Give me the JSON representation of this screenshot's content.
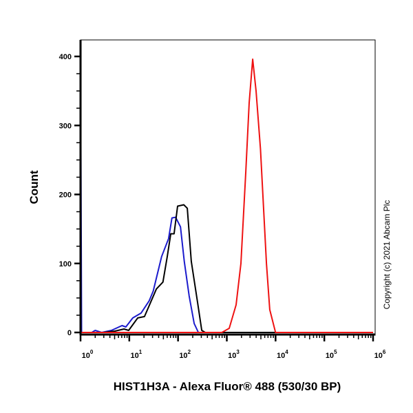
{
  "chart_data": {
    "type": "line",
    "title": "",
    "xlabel": "HIST1H3A - Alexa Fluor® 488 (530/30 BP)",
    "ylabel": "Count",
    "xscale": "log",
    "xlim": [
      1,
      1000000
    ],
    "ylim": [
      0,
      424
    ],
    "x_ticks": [
      1,
      10,
      100,
      1000,
      10000,
      100000,
      1000000
    ],
    "x_tick_labels": [
      {
        "base": "10",
        "exp": "0"
      },
      {
        "base": "10",
        "exp": "1"
      },
      {
        "base": "10",
        "exp": "2"
      },
      {
        "base": "10",
        "exp": "3"
      },
      {
        "base": "10",
        "exp": "4"
      },
      {
        "base": "10",
        "exp": "5"
      },
      {
        "base": "10",
        "exp": "6"
      }
    ],
    "y_ticks": [
      0,
      100,
      200,
      300,
      400
    ],
    "y_tick_labels": [
      "0",
      "100",
      "200",
      "300",
      "400"
    ],
    "grid": false,
    "legend": "none",
    "series": [
      {
        "color": "#1a1acc",
        "points": [
          [
            1.0,
            408
          ],
          [
            1.05,
            0
          ],
          [
            1.7,
            0
          ],
          [
            2.0,
            3
          ],
          [
            2.7,
            0
          ],
          [
            4.3,
            3
          ],
          [
            7.1,
            10
          ],
          [
            8.5,
            8
          ],
          [
            11.8,
            21
          ],
          [
            17.4,
            28
          ],
          [
            25.6,
            46
          ],
          [
            31,
            60
          ],
          [
            46,
            110
          ],
          [
            64,
            136
          ],
          [
            75,
            166
          ],
          [
            89,
            167
          ],
          [
            112,
            153
          ],
          [
            134,
            103
          ],
          [
            169,
            53
          ],
          [
            214,
            13
          ],
          [
            261,
            0
          ],
          [
            1000000,
            0
          ]
        ]
      },
      {
        "color": "#000000",
        "points": [
          [
            1.0,
            0
          ],
          [
            2.9,
            0
          ],
          [
            5.1,
            2
          ],
          [
            7.8,
            5
          ],
          [
            9.7,
            3
          ],
          [
            14.9,
            21
          ],
          [
            20.5,
            23
          ],
          [
            36,
            63
          ],
          [
            49,
            73
          ],
          [
            60,
            110
          ],
          [
            71,
            143
          ],
          [
            83,
            143
          ],
          [
            98,
            183
          ],
          [
            131,
            185
          ],
          [
            155,
            180
          ],
          [
            187,
            103
          ],
          [
            252,
            43
          ],
          [
            306,
            3
          ],
          [
            361,
            0
          ],
          [
            1000000,
            0
          ]
        ]
      },
      {
        "color": "#ee1111",
        "points": [
          [
            1.0,
            0
          ],
          [
            790,
            0
          ],
          [
            1120,
            6
          ],
          [
            1550,
            40
          ],
          [
            1950,
            100
          ],
          [
            2450,
            233
          ],
          [
            2880,
            333
          ],
          [
            3390,
            396
          ],
          [
            3980,
            350
          ],
          [
            4900,
            266
          ],
          [
            6500,
            100
          ],
          [
            7600,
            33
          ],
          [
            10000,
            0
          ],
          [
            1000000,
            0
          ]
        ]
      }
    ]
  },
  "copyright": "Copyright (c) 2021 Abcam Plc"
}
